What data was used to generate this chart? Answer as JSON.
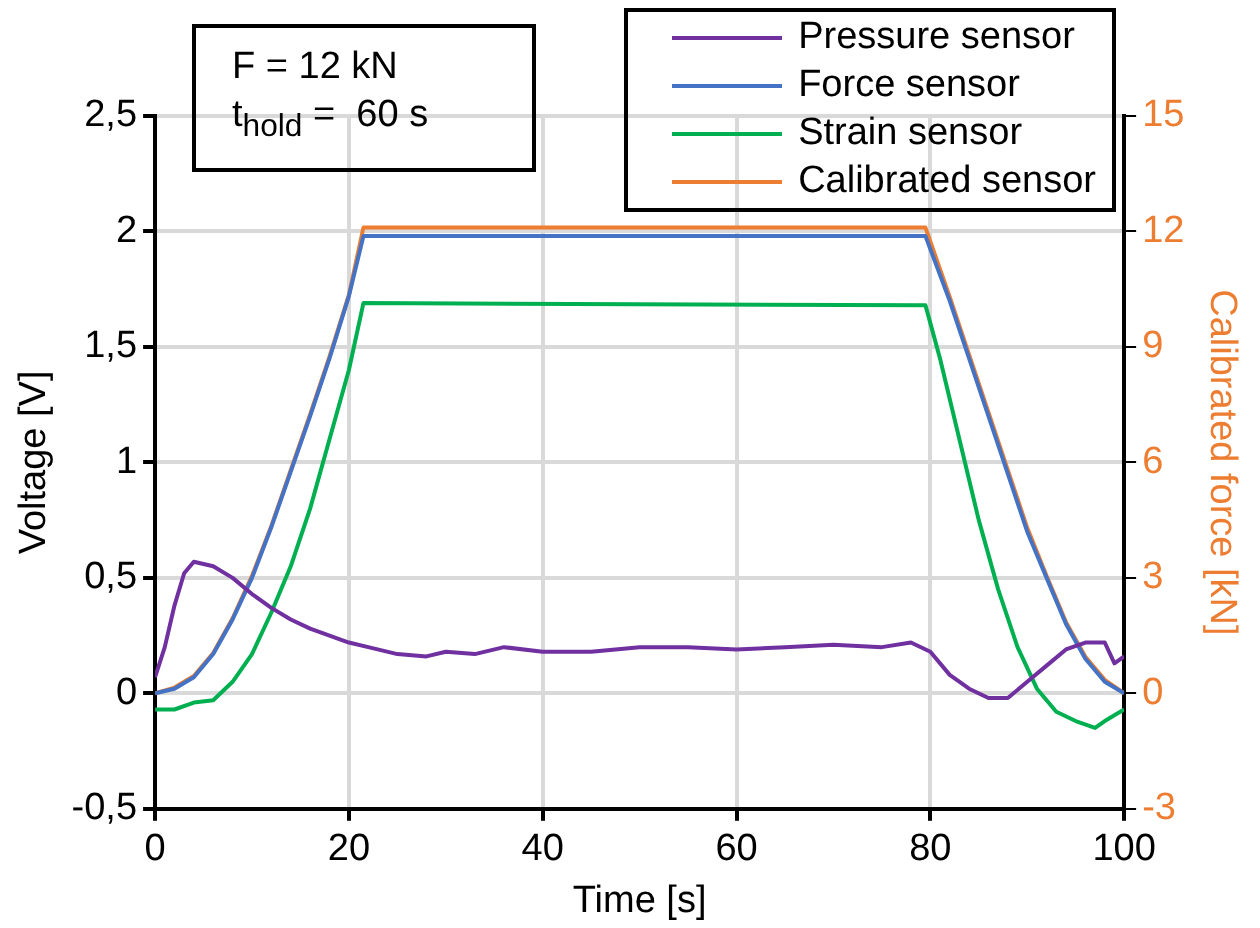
{
  "chart_data": {
    "type": "line",
    "xlabel": "Time [s]",
    "ylabel": "Voltage [V]",
    "y2label": "Calibrated force [kN]",
    "annotations": [
      "F = 12 kN",
      "t$_{hold}$ =  60 s"
    ],
    "xlim": [
      0,
      100
    ],
    "xticks": [
      0,
      20,
      40,
      60,
      80,
      100
    ],
    "ylim": [
      -0.5,
      2.5
    ],
    "yticks": [
      {
        "value": -0.5,
        "label": "-0,5"
      },
      0,
      {
        "value": 0.5,
        "label": "0,5"
      },
      1,
      {
        "value": 1.5,
        "label": "1,5"
      },
      2,
      {
        "value": 2.5,
        "label": "2,5"
      }
    ],
    "y2lim": [
      -3,
      15
    ],
    "y2ticks": [
      -3,
      0,
      3,
      6,
      9,
      12,
      15
    ],
    "grid": true,
    "legend": "top right",
    "marker": "none",
    "line_style": "solid",
    "series": [
      {
        "name": "Pressure sensor",
        "color": "#7030a0",
        "x": [
          0,
          1,
          2,
          3,
          4,
          6,
          8,
          10,
          12,
          14,
          16,
          18,
          20,
          22,
          25,
          28,
          30,
          33,
          36,
          40,
          45,
          50,
          55,
          60,
          65,
          70,
          75,
          78,
          80,
          82,
          84,
          86,
          88,
          90,
          92,
          94,
          96,
          98,
          99,
          100
        ],
        "values": [
          0.07,
          0.2,
          0.38,
          0.52,
          0.57,
          0.55,
          0.5,
          0.43,
          0.37,
          0.32,
          0.28,
          0.25,
          0.22,
          0.2,
          0.17,
          0.16,
          0.18,
          0.17,
          0.2,
          0.18,
          0.18,
          0.2,
          0.2,
          0.19,
          0.2,
          0.21,
          0.2,
          0.22,
          0.18,
          0.08,
          0.02,
          -0.02,
          -0.02,
          0.05,
          0.12,
          0.19,
          0.22,
          0.22,
          0.13,
          0.16
        ]
      },
      {
        "name": "Force sensor",
        "color": "#4472c4",
        "x": [
          0,
          2,
          4,
          6,
          8,
          10,
          12,
          14,
          16,
          18,
          20,
          21.5,
          79.5,
          82,
          84,
          86,
          88,
          90,
          92,
          94,
          96,
          98,
          100
        ],
        "values": [
          0,
          0.02,
          0.07,
          0.17,
          0.32,
          0.5,
          0.72,
          0.96,
          1.2,
          1.45,
          1.72,
          1.98,
          1.98,
          1.7,
          1.45,
          1.2,
          0.95,
          0.7,
          0.5,
          0.3,
          0.15,
          0.05,
          0
        ]
      },
      {
        "name": "Strain sensor",
        "color": "#00b050",
        "x": [
          0,
          2,
          4,
          6,
          8,
          10,
          12,
          14,
          16,
          18,
          20,
          21.5,
          79.5,
          81,
          83,
          85,
          87,
          89,
          91,
          93,
          95,
          97,
          98,
          100
        ],
        "values": [
          -0.07,
          -0.07,
          -0.04,
          -0.03,
          0.05,
          0.17,
          0.35,
          0.55,
          0.8,
          1.1,
          1.4,
          1.69,
          1.68,
          1.45,
          1.1,
          0.75,
          0.45,
          0.2,
          0.02,
          -0.08,
          -0.12,
          -0.15,
          -0.12,
          -0.07
        ]
      },
      {
        "name": "Calibrated sensor",
        "color": "#ed7d31",
        "axis": "y2",
        "x": [
          0,
          2,
          4,
          6,
          8,
          10,
          12,
          14,
          16,
          18,
          20,
          21.5,
          79.5,
          82,
          84,
          86,
          88,
          90,
          92,
          94,
          96,
          98,
          100
        ],
        "values": [
          0,
          0.15,
          0.45,
          1.05,
          1.95,
          3.05,
          4.35,
          5.8,
          7.25,
          8.75,
          10.35,
          12.1,
          12.1,
          10.3,
          8.8,
          7.3,
          5.8,
          4.3,
          3.05,
          1.85,
          0.95,
          0.35,
          0
        ]
      }
    ]
  }
}
